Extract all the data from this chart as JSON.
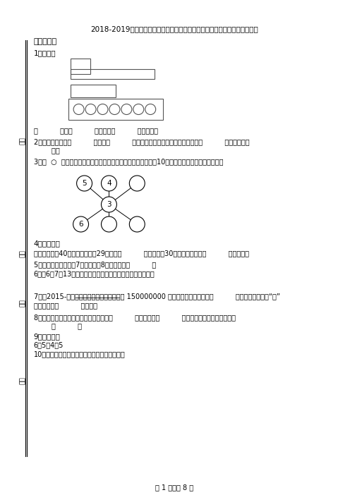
{
  "title": "2018-2019年上海市徐汇区虹桥路小学一年级上册数学第一次模拟月考含答案",
  "bg_color": "#ffffff",
  "section1": "一、填空题",
  "q1_label": "1．观察。",
  "q1_shapes_text": "有          个圆，          个长方形，          个正方形。",
  "q2_text": "2．计算减法时，要          对齐，从          位减起，哪一位不够减，就从前一位退          ，在本位上加",
  "q2_text2": "        再减",
  "q3_text": "3．在  ○  里填上正确的数，使每条线的三个数相加的和都等于10。（从上到下，从左到右填写）",
  "q4_label": "4．应用题。",
  "q4_text": "商店里原来有40台电视机，卖掄29台，还剩          台？又运来30台，现在商店里有          台电视机？",
  "q5_text": "5．一个数的十位上是7，个位上是8，这个整数是          。",
  "q6_text": "6．用6、7、13这三个数写出两道加法算式和两道减法算式。",
  "q7_text": "7．（2015-浙江嘉阳）舟舍岛的面积大约是 150000000 平方米，横线上的数读作          平方米，改写成用“亿”",
  "q7_text2": "作单位的数是          平方米。",
  "q8_text": "8．在数位顺序表中，从右往左数第六位是          ，计数单位是          ，与它相邻的两个计数单位是",
  "q8_text2": "        和          。",
  "q9_label": "9．判断正误",
  "q9_text": "6＋5－4＝5",
  "q10_text": "10．数一数，下面图形是由几个正方体组成的。",
  "footer": "第 1 页，共 8 页",
  "sidebar_labels": [
    "分数",
    "姓名",
    "班级",
    "题号"
  ]
}
